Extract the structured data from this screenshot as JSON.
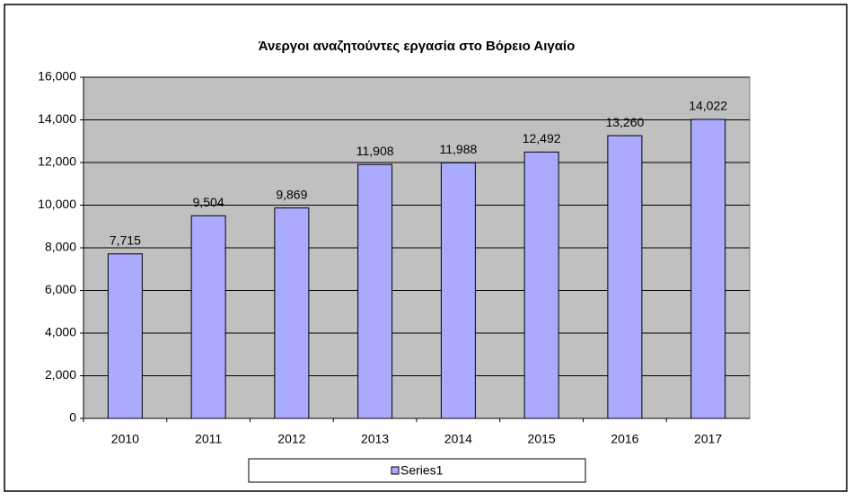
{
  "chart_data": {
    "type": "bar",
    "title": "Άνεργοι αναζητούντες εργασία στο Βόρειο Αιγαίο",
    "categories": [
      "2010",
      "2011",
      "2012",
      "2013",
      "2014",
      "2015",
      "2016",
      "2017"
    ],
    "series": [
      {
        "name": "Series1",
        "color": "#aaaaff",
        "values": [
          7715,
          9504,
          9869,
          11908,
          11988,
          12492,
          13260,
          14022
        ],
        "value_labels": [
          "7,715",
          "9,504",
          "9,869",
          "11,908",
          "11,988",
          "12,492",
          "13,260",
          "14,022"
        ]
      }
    ],
    "ylim": [
      0,
      16000
    ],
    "yticks": [
      0,
      {
        "value": 2000,
        "label": "2,000"
      },
      {
        "value": 4000,
        "label": "4,000"
      },
      {
        "value": 6000,
        "label": "6,000"
      },
      {
        "value": 8000,
        "label": "8,000"
      },
      {
        "value": 10000,
        "label": "10,000"
      },
      {
        "value": 12000,
        "label": "12,000"
      },
      {
        "value": 14000,
        "label": "14,000"
      },
      {
        "value": 16000,
        "label": "16,000"
      }
    ],
    "grid": true,
    "legend": "bottom"
  }
}
